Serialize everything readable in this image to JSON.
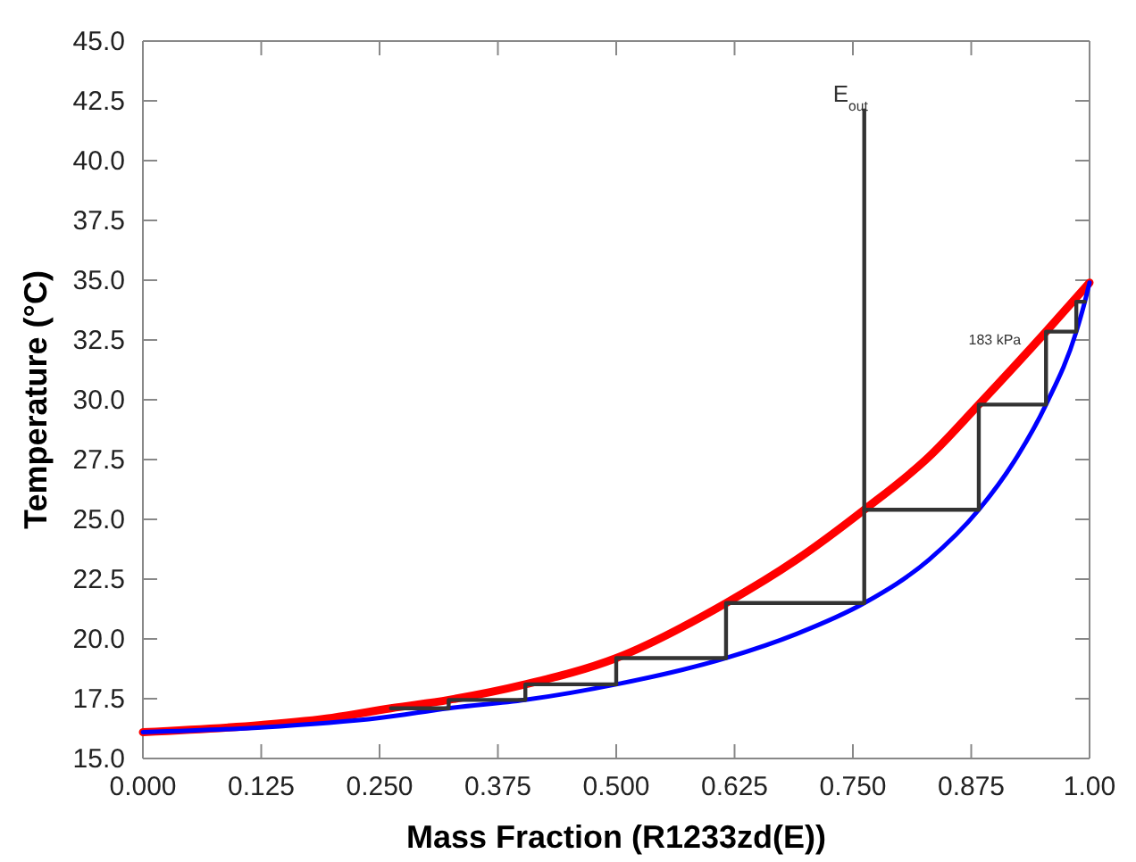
{
  "chart_data": {
    "type": "line",
    "xlabel": "Mass Fraction (R1233zd(E))",
    "ylabel": "Temperature (°C)",
    "xlim": [
      0,
      1
    ],
    "ylim": [
      15,
      45
    ],
    "xticks": [
      {
        "value": 0,
        "label": "0.000"
      },
      {
        "value": 0.125,
        "label": "0.125"
      },
      {
        "value": 0.25,
        "label": "0.250"
      },
      {
        "value": 0.375,
        "label": "0.375"
      },
      {
        "value": 0.5,
        "label": "0.500"
      },
      {
        "value": 0.625,
        "label": "0.625"
      },
      {
        "value": 0.75,
        "label": "0.750"
      },
      {
        "value": 0.875,
        "label": "0.875"
      },
      {
        "value": 1,
        "label": "1.00"
      }
    ],
    "yticks": [
      {
        "value": 15,
        "label": "15.0"
      },
      {
        "value": 17.5,
        "label": "17.5"
      },
      {
        "value": 20,
        "label": "20.0"
      },
      {
        "value": 22.5,
        "label": "22.5"
      },
      {
        "value": 25,
        "label": "25.0"
      },
      {
        "value": 27.5,
        "label": "27.5"
      },
      {
        "value": 30,
        "label": "30.0"
      },
      {
        "value": 32.5,
        "label": "32.5"
      },
      {
        "value": 35,
        "label": "35.0"
      },
      {
        "value": 37.5,
        "label": "37.5"
      },
      {
        "value": 40,
        "label": "40.0"
      },
      {
        "value": 42.5,
        "label": "42.5"
      },
      {
        "value": 45,
        "label": "45.0"
      }
    ],
    "grid": false,
    "series": [
      {
        "color": "#ff0000",
        "x": [
          0,
          0.125,
          0.2,
          0.262,
          0.323,
          0.404,
          0.5,
          0.616,
          0.69,
          0.762,
          0.83,
          0.883,
          0.954,
          1.0
        ],
        "values": [
          16.1,
          16.4,
          16.7,
          17.1,
          17.45,
          18.1,
          19.2,
          21.5,
          23.3,
          25.4,
          27.6,
          29.8,
          32.85,
          34.9
        ]
      },
      {
        "color": "#0000ff",
        "x": [
          0,
          0.125,
          0.25,
          0.323,
          0.404,
          0.5,
          0.616,
          0.69,
          0.762,
          0.83,
          0.883,
          0.92,
          0.954,
          0.986,
          0.995,
          1.0
        ],
        "values": [
          16.1,
          16.3,
          16.7,
          17.1,
          17.45,
          18.1,
          19.2,
          20.2,
          21.5,
          23.3,
          25.4,
          27.4,
          29.8,
          32.85,
          34.1,
          34.9
        ]
      },
      {
        "color": "#333333",
        "x": [
          0.762,
          0.762,
          0.616,
          0.616,
          0.5,
          0.5,
          0.404,
          0.404,
          0.323,
          0.323,
          0.262
        ],
        "values": [
          42.1,
          21.5,
          21.5,
          19.2,
          19.2,
          18.1,
          18.1,
          17.45,
          17.45,
          17.1,
          17.1
        ]
      },
      {
        "color": "#333333",
        "x": [
          0.762,
          0.883,
          0.883,
          0.954,
          0.954,
          0.986,
          0.986,
          0.995
        ],
        "values": [
          25.4,
          25.4,
          29.8,
          29.8,
          32.85,
          32.85,
          34.1,
          34.1
        ]
      }
    ],
    "annotations": [
      {
        "text": "E$_{out}$",
        "x": 0.762,
        "y": 42.1
      },
      {
        "text": "183 kPa",
        "x": 0.954,
        "y": 32.85
      }
    ]
  }
}
